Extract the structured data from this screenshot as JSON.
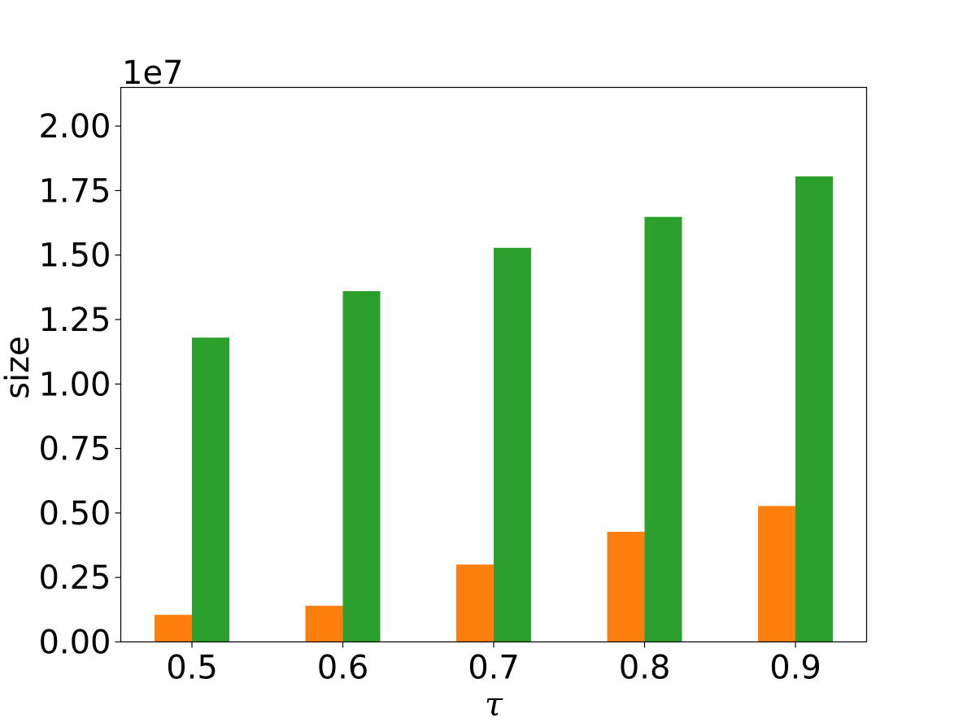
{
  "chart_data": {
    "type": "bar",
    "categories": [
      "0.5",
      "0.6",
      "0.7",
      "0.8",
      "0.9"
    ],
    "series": [
      {
        "color": "#ff7f0e",
        "values": [
          1050000,
          1400000,
          3000000,
          4270000,
          5270000
        ]
      },
      {
        "color": "#2ca02c",
        "values": [
          11800000,
          13600000,
          15280000,
          16480000,
          18050000
        ]
      }
    ],
    "xlabel": "τ",
    "ylabel": "size",
    "y_offset_label": "1e7",
    "yticks": [
      0,
      2500000,
      5000000,
      7500000,
      10000000,
      12500000,
      15000000,
      17500000,
      20000000
    ],
    "ytick_labels": [
      "0.00",
      "0.25",
      "0.50",
      "0.75",
      "1.00",
      "1.25",
      "1.50",
      "1.75",
      "2.00"
    ],
    "ylim": [
      0,
      21500000
    ],
    "grid": false,
    "legend": false
  }
}
